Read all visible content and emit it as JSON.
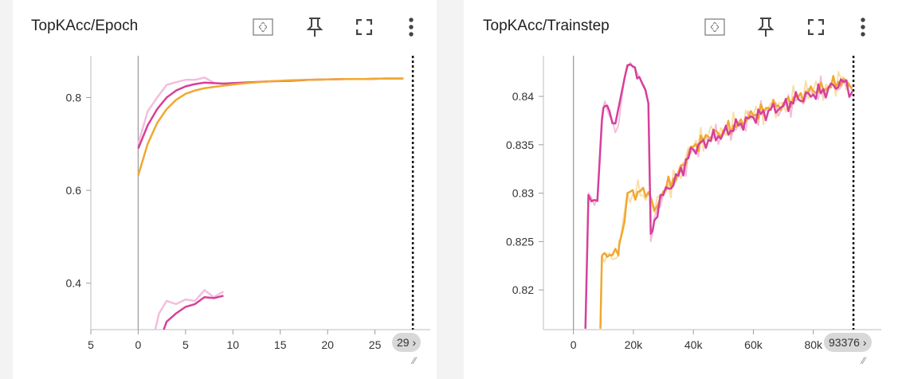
{
  "colors": {
    "pink_dark": "#d6409b",
    "pink_light": "#f3bedc",
    "orange": "#f0a830",
    "orange_light": "#f8dfa8",
    "axis": "#9e9e9e"
  },
  "toolbar_icons": [
    "fit-domain-icon",
    "pin-icon",
    "fullscreen-icon",
    "more-vert-icon"
  ],
  "cards": [
    {
      "title": "TopKAcc/Epoch",
      "cursor_label": "29",
      "overflow_mark": "›"
    },
    {
      "title": "TopKAcc/Trainstep",
      "cursor_label": "93376",
      "overflow_mark": "›"
    }
  ],
  "chart_data": [
    {
      "type": "line",
      "title": "TopKAcc/Epoch",
      "xlim": [
        -5,
        30
      ],
      "ylim": [
        0.3,
        0.89
      ],
      "xticks": [
        -5,
        0,
        5,
        10,
        15,
        20,
        25
      ],
      "xtick_labels": [
        "5",
        "0",
        "5",
        "10",
        "15",
        "20",
        "25"
      ],
      "yticks": [
        0.4,
        0.6,
        0.8
      ],
      "ytick_labels": [
        "0.4",
        "0.6",
        "0.8"
      ],
      "cursor_x": 29,
      "series": [
        {
          "color": "#f3bedc",
          "width": 2.5,
          "x": [
            0,
            1,
            2,
            3,
            4,
            5,
            6,
            7,
            8
          ],
          "y": [
            0.7,
            0.77,
            0.8,
            0.827,
            0.833,
            0.838,
            0.838,
            0.843,
            0.832
          ]
        },
        {
          "color": "#d6409b",
          "width": 2.5,
          "x": [
            0,
            1,
            2,
            3,
            4,
            5,
            6,
            7,
            8,
            9,
            10,
            12,
            14,
            16,
            18,
            20,
            22,
            24,
            26,
            28
          ],
          "y": [
            0.69,
            0.74,
            0.775,
            0.8,
            0.815,
            0.824,
            0.829,
            0.832,
            0.831,
            0.83,
            0.831,
            0.833,
            0.835,
            0.836,
            0.838,
            0.839,
            0.84,
            0.84,
            0.841,
            0.841
          ]
        },
        {
          "color": "#f0a830",
          "width": 2.5,
          "x": [
            0,
            1,
            2,
            3,
            4,
            5,
            6,
            7,
            8,
            10,
            12,
            14,
            16,
            18,
            20,
            22,
            24,
            26,
            28
          ],
          "y": [
            0.632,
            0.7,
            0.745,
            0.775,
            0.795,
            0.808,
            0.815,
            0.82,
            0.823,
            0.828,
            0.832,
            0.835,
            0.837,
            0.838,
            0.839,
            0.84,
            0.84,
            0.841,
            0.841
          ]
        },
        {
          "color": "#f3bedc",
          "width": 2.5,
          "x": [
            1.8,
            2.2,
            3,
            4,
            5,
            6,
            7,
            8,
            9
          ],
          "y": [
            0.3,
            0.335,
            0.362,
            0.355,
            0.365,
            0.362,
            0.385,
            0.37,
            0.382
          ]
        },
        {
          "color": "#d6409b",
          "width": 2.5,
          "x": [
            2.7,
            3,
            4,
            5,
            6,
            7,
            8,
            9
          ],
          "y": [
            0.3,
            0.317,
            0.335,
            0.349,
            0.355,
            0.37,
            0.368,
            0.373
          ]
        }
      ]
    },
    {
      "type": "line",
      "title": "TopKAcc/Trainstep",
      "xlim": [
        -10000,
        100000
      ],
      "ylim": [
        0.8159,
        0.8442
      ],
      "xticks": [
        0,
        20000,
        40000,
        60000,
        80000
      ],
      "xtick_labels": [
        "0",
        "20k",
        "40k",
        "60k",
        "80k"
      ],
      "yticks": [
        0.82,
        0.825,
        0.83,
        0.835,
        0.84
      ],
      "ytick_labels": [
        "0.82",
        "0.825",
        "0.83",
        "0.835",
        "0.84"
      ],
      "cursor_x": 93376,
      "series": [
        {
          "color": "#f8dfa8",
          "width": 2,
          "noisy": true,
          "x": [
            9000,
            9500,
            12000,
            15000,
            15500,
            18000,
            25000,
            27000,
            30000,
            35000,
            40000,
            45000,
            50000,
            55000,
            60000,
            65000,
            70000,
            75000,
            80000,
            85000,
            90000,
            93000
          ],
          "y": [
            0.816,
            0.8235,
            0.8238,
            0.8235,
            0.825,
            0.83,
            0.8301,
            0.828,
            0.83,
            0.832,
            0.8348,
            0.836,
            0.8365,
            0.8372,
            0.838,
            0.8388,
            0.8392,
            0.84,
            0.8405,
            0.841,
            0.842,
            0.841
          ]
        },
        {
          "color": "#f3bedc",
          "width": 2,
          "noisy": true,
          "x": [
            4000,
            5000,
            8000,
            9500,
            10500,
            12000,
            15000,
            17000,
            19000,
            20500,
            22000,
            25000,
            25800,
            27000,
            30000,
            35000,
            40000,
            45000,
            50000,
            55000,
            60000,
            65000,
            70000,
            75000,
            80000,
            85000,
            90000,
            93000
          ],
          "y": [
            0.816,
            0.83,
            0.8295,
            0.838,
            0.8395,
            0.838,
            0.837,
            0.842,
            0.8435,
            0.843,
            0.842,
            0.8393,
            0.825,
            0.8275,
            0.83,
            0.832,
            0.8345,
            0.8355,
            0.8362,
            0.837,
            0.8378,
            0.8385,
            0.839,
            0.8398,
            0.8402,
            0.8408,
            0.8415,
            0.8405
          ]
        },
        {
          "color": "#f0a830",
          "width": 2.5,
          "noisy": true,
          "x": [
            9000,
            9500,
            10500,
            12000,
            15000,
            15500,
            17000,
            18000,
            25000,
            27000,
            30000,
            35000,
            40000,
            45000,
            50000,
            55000,
            60000,
            65000,
            70000,
            75000,
            80000,
            85000,
            90000,
            93000
          ],
          "y": [
            0.816,
            0.8235,
            0.8238,
            0.8236,
            0.8236,
            0.825,
            0.827,
            0.83,
            0.8301,
            0.8282,
            0.8302,
            0.8322,
            0.8348,
            0.8358,
            0.8365,
            0.8372,
            0.838,
            0.8388,
            0.8393,
            0.84,
            0.8405,
            0.841,
            0.8418,
            0.8408
          ]
        },
        {
          "color": "#d6409b",
          "width": 2.5,
          "noisy": true,
          "x": [
            4000,
            5000,
            8000,
            9500,
            10500,
            12000,
            14000,
            17000,
            19000,
            20500,
            22000,
            25000,
            25800,
            27000,
            30000,
            35000,
            40000,
            45000,
            50000,
            55000,
            60000,
            65000,
            70000,
            75000,
            80000,
            85000,
            90000,
            93000
          ],
          "y": [
            0.816,
            0.8298,
            0.8292,
            0.8375,
            0.839,
            0.8385,
            0.8372,
            0.8418,
            0.8433,
            0.843,
            0.842,
            0.8393,
            0.8258,
            0.8272,
            0.8298,
            0.8318,
            0.8345,
            0.8355,
            0.8362,
            0.837,
            0.8378,
            0.8385,
            0.839,
            0.8397,
            0.8402,
            0.8408,
            0.8415,
            0.8405
          ]
        }
      ]
    }
  ]
}
